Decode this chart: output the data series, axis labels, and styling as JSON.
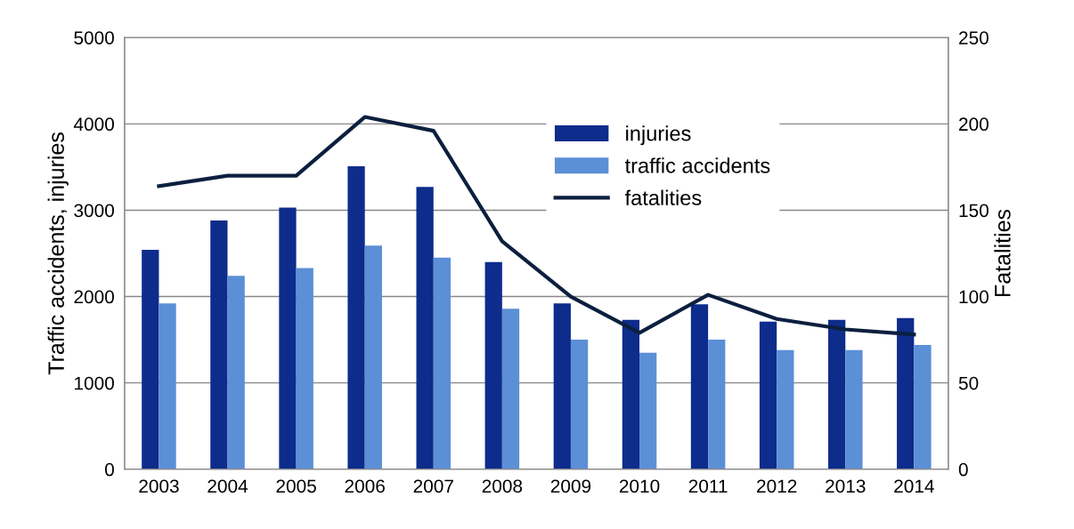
{
  "chart_data": {
    "type": "bar",
    "categories": [
      "2003",
      "2004",
      "2005",
      "2006",
      "2007",
      "2008",
      "2009",
      "2010",
      "2011",
      "2012",
      "2013",
      "2014"
    ],
    "ylabel": "Traffic accidents, injuries",
    "y2label": "Fatalities",
    "series": [
      {
        "name": "injuries",
        "color": "#0d2c8c",
        "values": [
          2540,
          2880,
          3030,
          3510,
          3270,
          2400,
          1920,
          1730,
          1910,
          1710,
          1730,
          1750
        ]
      },
      {
        "name": "traffic accidents",
        "color": "#5b8fd6",
        "values": [
          1920,
          2240,
          2330,
          2590,
          2450,
          1860,
          1500,
          1350,
          1500,
          1380,
          1380,
          1440
        ]
      },
      {
        "name": "fatalities",
        "type": "line",
        "axis": "y2",
        "color": "#0c1f3f",
        "values": [
          164,
          170,
          170,
          204,
          196,
          132,
          100,
          79,
          101,
          87,
          81,
          78
        ]
      }
    ],
    "ylim": [
      0,
      5000
    ],
    "yticks": [
      0,
      1000,
      2000,
      3000,
      4000,
      5000
    ],
    "y2lim": [
      0,
      250
    ],
    "y2ticks": [
      0,
      50,
      100,
      150,
      200,
      250
    ],
    "grid": "y",
    "legend": "top",
    "marker": "none",
    "line_style": "solid"
  }
}
